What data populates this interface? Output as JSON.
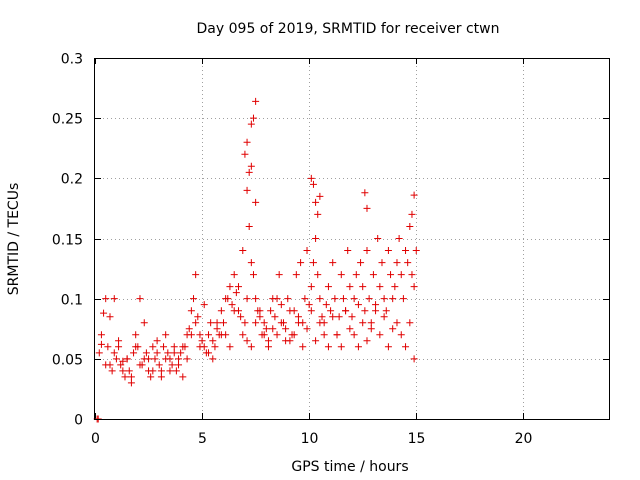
{
  "chart_data": {
    "type": "scatter",
    "title": "Day 095 of 2019, SRMTID for receiver ctwn",
    "xlabel": "GPS time / hours",
    "ylabel": "SRMTID / TECUs",
    "xlim": [
      0,
      24
    ],
    "ylim": [
      0,
      0.3
    ],
    "x_ticks": [
      0,
      5,
      10,
      15,
      20
    ],
    "x_tick_labels": [
      "0",
      "5",
      "10",
      "15",
      "20"
    ],
    "y_ticks": [
      0,
      0.05,
      0.1,
      0.15,
      0.2,
      0.25,
      0.3
    ],
    "y_tick_labels": [
      "0",
      "0.05",
      "0.1",
      "0.15",
      "0.2",
      "0.25",
      "0.3"
    ],
    "grid": true,
    "marker": "+",
    "color": "#e00000",
    "series": [
      {
        "name": "SRMTID",
        "x": [
          0.1,
          0.15,
          0.2,
          0.3,
          0.4,
          0.5,
          0.6,
          0.7,
          0.8,
          0.9,
          1.0,
          1.1,
          1.2,
          1.3,
          1.4,
          1.5,
          1.6,
          1.7,
          1.8,
          1.9,
          2.0,
          2.1,
          2.2,
          2.3,
          2.4,
          2.5,
          2.6,
          2.7,
          2.8,
          2.9,
          3.0,
          3.1,
          3.2,
          3.3,
          3.4,
          3.5,
          3.6,
          3.7,
          3.8,
          3.9,
          4.0,
          4.1,
          4.2,
          4.3,
          4.4,
          4.5,
          4.6,
          4.7,
          4.8,
          4.9,
          5.0,
          5.1,
          5.2,
          5.3,
          5.4,
          5.5,
          5.6,
          5.7,
          5.8,
          5.9,
          6.0,
          6.1,
          6.2,
          6.3,
          6.4,
          6.5,
          6.6,
          6.7,
          6.8,
          6.9,
          7.0,
          7.1,
          7.2,
          7.3,
          7.4,
          7.5,
          7.6,
          7.7,
          7.8,
          7.9,
          8.0,
          8.1,
          8.2,
          8.3,
          8.4,
          8.5,
          8.6,
          8.7,
          8.8,
          8.9,
          9.0,
          9.1,
          9.2,
          9.3,
          9.4,
          9.5,
          9.6,
          9.7,
          9.8,
          9.9,
          10.0,
          10.1,
          10.2,
          10.3,
          10.4,
          10.5,
          10.6,
          10.7,
          10.8,
          10.9,
          11.0,
          11.1,
          11.2,
          11.3,
          11.4,
          11.5,
          11.6,
          11.7,
          11.8,
          11.9,
          12.0,
          12.1,
          12.2,
          12.3,
          12.4,
          12.5,
          12.6,
          12.7,
          12.8,
          12.9,
          13.0,
          13.1,
          13.2,
          13.3,
          13.4,
          13.5,
          13.6,
          13.7,
          13.8,
          13.9,
          14.0,
          14.1,
          14.2,
          14.3,
          14.4,
          14.5,
          14.6,
          14.7,
          14.8,
          14.9,
          15.0,
          0.3,
          0.5,
          0.7,
          0.9,
          1.1,
          1.3,
          1.5,
          1.7,
          1.9,
          2.1,
          2.3,
          2.5,
          2.7,
          2.9,
          3.1,
          3.3,
          3.5,
          3.7,
          3.9,
          4.1,
          4.3,
          4.5,
          4.7,
          4.9,
          5.1,
          5.3,
          5.5,
          5.7,
          5.9,
          6.1,
          6.3,
          6.5,
          6.7,
          6.9,
          7.1,
          7.3,
          7.5,
          7.7,
          7.9,
          8.1,
          8.3,
          8.5,
          8.7,
          8.9,
          9.1,
          9.3,
          9.5,
          9.7,
          9.9,
          10.1,
          10.3,
          10.5,
          10.7,
          10.9,
          11.1,
          11.3,
          11.5,
          11.7,
          11.9,
          12.1,
          12.3,
          12.5,
          12.7,
          12.9,
          13.1,
          13.3,
          13.5,
          13.7,
          13.9,
          14.1,
          14.3,
          14.5,
          14.7,
          14.9,
          7.0,
          7.1,
          7.2,
          7.3,
          7.4,
          7.5,
          7.1,
          7.3,
          7.5,
          10.1,
          10.2,
          10.3,
          10.4,
          10.5,
          12.6,
          12.7,
          14.8,
          14.9
        ],
        "y": [
          0.0,
          0.0,
          0.055,
          0.062,
          0.088,
          0.1,
          0.06,
          0.045,
          0.04,
          0.055,
          0.05,
          0.06,
          0.045,
          0.048,
          0.035,
          0.05,
          0.04,
          0.03,
          0.055,
          0.07,
          0.06,
          0.1,
          0.045,
          0.05,
          0.055,
          0.04,
          0.035,
          0.06,
          0.05,
          0.055,
          0.045,
          0.04,
          0.06,
          0.07,
          0.055,
          0.05,
          0.045,
          0.06,
          0.04,
          0.05,
          0.055,
          0.035,
          0.06,
          0.07,
          0.075,
          0.09,
          0.1,
          0.12,
          0.085,
          0.07,
          0.065,
          0.06,
          0.055,
          0.07,
          0.08,
          0.065,
          0.06,
          0.075,
          0.07,
          0.09,
          0.08,
          0.07,
          0.1,
          0.11,
          0.095,
          0.12,
          0.105,
          0.09,
          0.085,
          0.14,
          0.08,
          0.1,
          0.16,
          0.13,
          0.12,
          0.1,
          0.09,
          0.085,
          0.07,
          0.08,
          0.075,
          0.065,
          0.09,
          0.1,
          0.085,
          0.07,
          0.12,
          0.095,
          0.08,
          0.075,
          0.1,
          0.065,
          0.07,
          0.09,
          0.12,
          0.085,
          0.13,
          0.08,
          0.1,
          0.14,
          0.095,
          0.11,
          0.13,
          0.15,
          0.12,
          0.1,
          0.085,
          0.08,
          0.095,
          0.11,
          0.09,
          0.13,
          0.1,
          0.07,
          0.085,
          0.12,
          0.1,
          0.09,
          0.14,
          0.11,
          0.085,
          0.1,
          0.12,
          0.095,
          0.13,
          0.11,
          0.09,
          0.14,
          0.1,
          0.08,
          0.12,
          0.095,
          0.15,
          0.11,
          0.13,
          0.1,
          0.09,
          0.14,
          0.12,
          0.1,
          0.11,
          0.13,
          0.15,
          0.12,
          0.1,
          0.14,
          0.13,
          0.16,
          0.12,
          0.11,
          0.14,
          0.07,
          0.045,
          0.085,
          0.1,
          0.065,
          0.04,
          0.05,
          0.035,
          0.06,
          0.045,
          0.08,
          0.05,
          0.04,
          0.065,
          0.035,
          0.05,
          0.04,
          0.055,
          0.045,
          0.06,
          0.05,
          0.07,
          0.08,
          0.06,
          0.095,
          0.055,
          0.05,
          0.08,
          0.07,
          0.1,
          0.06,
          0.09,
          0.11,
          0.07,
          0.065,
          0.06,
          0.08,
          0.09,
          0.07,
          0.06,
          0.075,
          0.1,
          0.08,
          0.065,
          0.09,
          0.07,
          0.08,
          0.06,
          0.075,
          0.09,
          0.065,
          0.08,
          0.07,
          0.06,
          0.085,
          0.07,
          0.06,
          0.09,
          0.075,
          0.07,
          0.06,
          0.08,
          0.065,
          0.075,
          0.09,
          0.07,
          0.085,
          0.06,
          0.075,
          0.08,
          0.07,
          0.06,
          0.08,
          0.05,
          0.22,
          0.23,
          0.205,
          0.245,
          0.25,
          0.264,
          0.19,
          0.21,
          0.18,
          0.2,
          0.195,
          0.18,
          0.17,
          0.185,
          0.188,
          0.175,
          0.17,
          0.186
        ]
      }
    ]
  }
}
